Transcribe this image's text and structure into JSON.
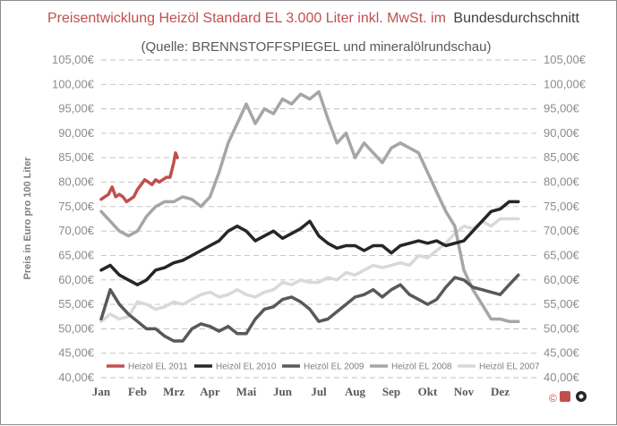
{
  "chart_data": {
    "type": "line",
    "title_part1": "Preisentwicklung  Heizöl  Standard  EL  3.000  Liter  inkl.  MwSt.  im",
    "title_part2": "Bundesdurchschnitt",
    "subtitle": "(Quelle:  BRENNSTOFFSPIEGEL  und  mineralölrundschau)",
    "ylabel": "Preis in Euro pro 100 Liter",
    "ylim": [
      40,
      105
    ],
    "ytick_values": [
      40,
      45,
      50,
      55,
      60,
      65,
      70,
      75,
      80,
      85,
      90,
      95,
      100,
      105
    ],
    "ytick_labels": [
      "40,00€",
      "45,00€",
      "50,00€",
      "55,00€",
      "60,00€",
      "65,00€",
      "70,00€",
      "75,00€",
      "80,00€",
      "85,00€",
      "90,00€",
      "95,00€",
      "100,00€",
      "105,00€"
    ],
    "categories": [
      "Jan",
      "Feb",
      "Mrz",
      "Apr",
      "Mai",
      "Jun",
      "Jul",
      "Aug",
      "Sep",
      "Okt",
      "Nov",
      "Dez"
    ],
    "grid": true,
    "legend_position": "bottom",
    "series": [
      {
        "name": "Heizöl EL 2011",
        "color": "#c0504d",
        "x": [
          0,
          0.1,
          0.2,
          0.3,
          0.4,
          0.5,
          0.6,
          0.7,
          0.8,
          0.9,
          1.0,
          1.1,
          1.2,
          1.3,
          1.4,
          1.5,
          1.6,
          1.7,
          1.8,
          1.9,
          2.0,
          2.05,
          2.1
        ],
        "y": [
          76.5,
          77,
          77.5,
          79,
          77,
          77.5,
          77,
          76,
          76.5,
          77,
          78.5,
          79.5,
          80.5,
          80,
          79.5,
          80.5,
          80,
          80.5,
          81,
          81,
          84,
          86,
          85
        ]
      },
      {
        "name": "Heizöl EL 2010",
        "color": "#262626",
        "x": [
          0,
          0.25,
          0.5,
          0.75,
          1,
          1.25,
          1.5,
          1.75,
          2,
          2.25,
          2.5,
          2.75,
          3,
          3.25,
          3.5,
          3.75,
          4,
          4.25,
          4.5,
          4.75,
          5,
          5.25,
          5.5,
          5.75,
          6,
          6.25,
          6.5,
          6.75,
          7,
          7.25,
          7.5,
          7.75,
          8,
          8.25,
          8.5,
          8.75,
          9,
          9.25,
          9.5,
          9.75,
          10,
          10.25,
          10.5,
          10.75,
          11,
          11.25,
          11.5
        ],
        "y": [
          62,
          63,
          61,
          60,
          59,
          60,
          62,
          62.5,
          63.5,
          64,
          65,
          66,
          67,
          68,
          70,
          71,
          70,
          68,
          69,
          70,
          68.5,
          69.5,
          70.5,
          72,
          69,
          67.5,
          66.5,
          67,
          67,
          66,
          67,
          67,
          65.5,
          67,
          67.5,
          68,
          67.5,
          68,
          67,
          67.5,
          68,
          70,
          72,
          74,
          74.5,
          76,
          76
        ]
      },
      {
        "name": "Heizöl EL 2009",
        "color": "#595959",
        "x": [
          0,
          0.25,
          0.5,
          0.75,
          1,
          1.25,
          1.5,
          1.75,
          2,
          2.25,
          2.5,
          2.75,
          3,
          3.25,
          3.5,
          3.75,
          4,
          4.25,
          4.5,
          4.75,
          5,
          5.25,
          5.5,
          5.75,
          6,
          6.25,
          6.5,
          6.75,
          7,
          7.25,
          7.5,
          7.75,
          8,
          8.25,
          8.5,
          8.75,
          9,
          9.25,
          9.5,
          9.75,
          10,
          10.25,
          10.5,
          10.75,
          11,
          11.25,
          11.5
        ],
        "y": [
          52,
          58,
          55,
          53,
          51.5,
          50,
          50,
          48.5,
          47.5,
          47.5,
          50,
          51,
          50.5,
          49.5,
          50.5,
          49,
          49,
          52,
          54,
          54.5,
          56,
          56.5,
          55.5,
          54,
          51.5,
          52,
          53.5,
          55,
          56.5,
          57,
          58,
          56.5,
          58,
          59,
          57,
          56,
          55,
          56,
          58.5,
          60.5,
          60,
          58.5,
          58,
          57.5,
          57,
          59,
          61
        ]
      },
      {
        "name": "Heizöl EL 2008",
        "color": "#a6a6a6",
        "x": [
          0,
          0.25,
          0.5,
          0.75,
          1,
          1.25,
          1.5,
          1.75,
          2,
          2.25,
          2.5,
          2.75,
          3,
          3.25,
          3.5,
          3.75,
          4,
          4.25,
          4.5,
          4.75,
          5,
          5.25,
          5.5,
          5.75,
          6,
          6.25,
          6.5,
          6.75,
          7,
          7.25,
          7.5,
          7.75,
          8,
          8.25,
          8.5,
          8.75,
          9,
          9.25,
          9.5,
          9.75,
          10,
          10.25,
          10.5,
          10.75,
          11,
          11.25,
          11.5
        ],
        "y": [
          74,
          72,
          70,
          69,
          70,
          73,
          75,
          76,
          76,
          77,
          76.5,
          75,
          77,
          82,
          88,
          92,
          96,
          92,
          95,
          94,
          97,
          96,
          98,
          97,
          98.5,
          93,
          88,
          90,
          85,
          88,
          86,
          84,
          87,
          88,
          87,
          86,
          82,
          78,
          74,
          71,
          62,
          58,
          55,
          52,
          52,
          51.5,
          51.5
        ]
      },
      {
        "name": "Heizöl EL 2007",
        "color": "#d9d9d9",
        "x": [
          0,
          0.25,
          0.5,
          0.75,
          1,
          1.25,
          1.5,
          1.75,
          2,
          2.25,
          2.5,
          2.75,
          3,
          3.25,
          3.5,
          3.75,
          4,
          4.25,
          4.5,
          4.75,
          5,
          5.25,
          5.5,
          5.75,
          6,
          6.25,
          6.5,
          6.75,
          7,
          7.25,
          7.5,
          7.75,
          8,
          8.25,
          8.5,
          8.75,
          9,
          9.25,
          9.5,
          9.75,
          10,
          10.25,
          10.5,
          10.75,
          11,
          11.25,
          11.5
        ],
        "y": [
          51.5,
          53,
          52,
          52.5,
          55.5,
          55,
          54,
          54.5,
          55.5,
          55,
          56,
          57,
          57.5,
          56.5,
          57,
          58,
          57,
          56.5,
          57.5,
          58,
          59.5,
          59,
          60,
          59.5,
          59.5,
          60.5,
          60,
          61.5,
          61,
          62,
          63,
          62.5,
          63,
          63.5,
          63,
          65,
          64.5,
          66,
          67.5,
          69.5,
          71,
          70.5,
          72,
          71,
          72.5,
          72.5,
          72.5
        ]
      }
    ]
  },
  "logo": {
    "copyright": "©",
    "name": "logo"
  }
}
